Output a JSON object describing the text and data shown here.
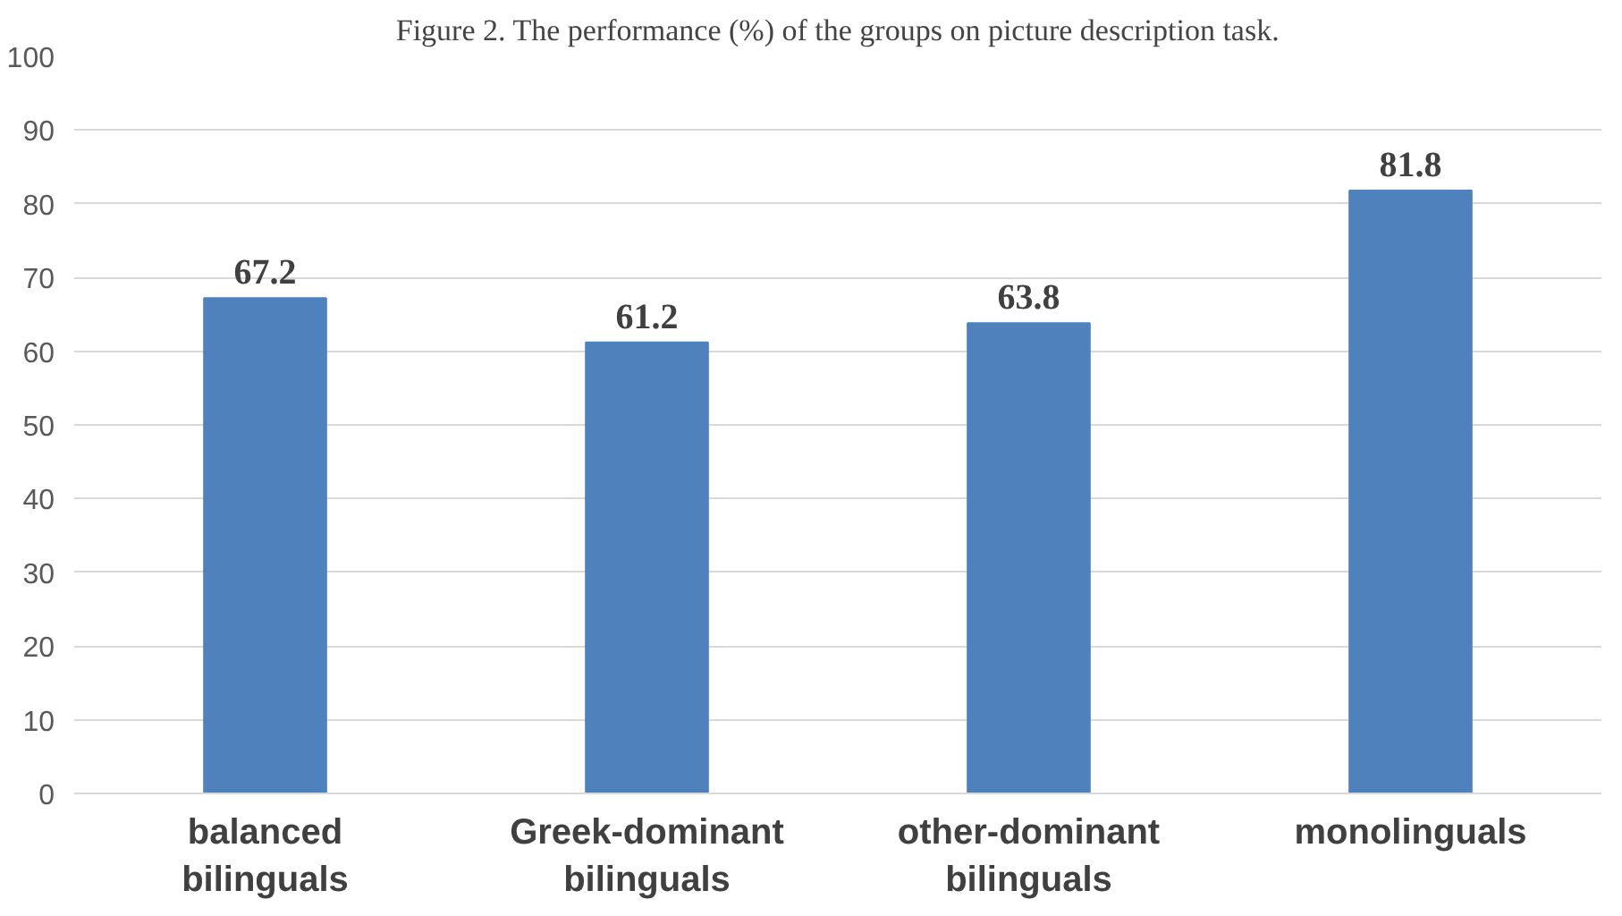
{
  "chart_data": {
    "type": "bar",
    "title": "Figure 2. The performance (%) of the groups on picture description task.",
    "categories": [
      "balanced\nbilinguals",
      "Greek-dominant\nbilinguals",
      "other-dominant\nbilinguals",
      "monolinguals"
    ],
    "values": [
      67.2,
      61.2,
      63.8,
      81.8
    ],
    "color": "#4f81bd",
    "ylim": [
      0,
      100
    ],
    "yticks": [
      0,
      10,
      20,
      30,
      40,
      50,
      60,
      70,
      80,
      90,
      100
    ],
    "grid": "y",
    "data_labels": true
  }
}
